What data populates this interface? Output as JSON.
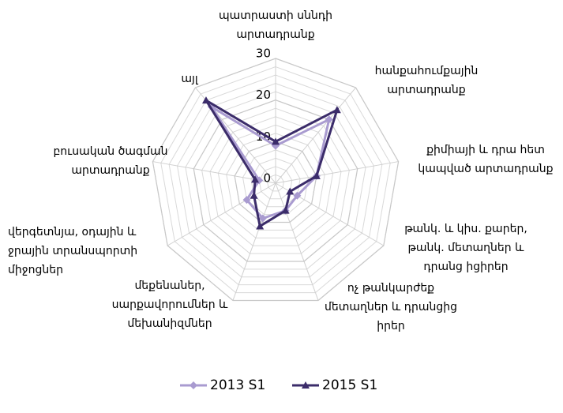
{
  "chart_data": {
    "type": "radar",
    "categories": [
      [
        "պատրաստի սննդի",
        "արտադրանք"
      ],
      [
        "հանքահումքային",
        "արտադրանք"
      ],
      [
        "քիմիայի և դրա հետ",
        "կապված արտադրանք"
      ],
      [
        "թանկ. և կիս. քարեր,",
        "թանկ. մետաղներ և",
        "դրանց իցիրեր"
      ],
      [
        "ոչ թանկարժեք",
        "մետաղներ և դրանցից",
        "իրեր"
      ],
      [
        "մեքենաներ,",
        "սարքավորումներ և",
        "մեխանիզմներ"
      ],
      [
        "վերգետնյա, օդային և",
        "ջրային տրանսպորտի",
        "միջոցներ"
      ],
      [
        "բուսական ծագման",
        "արտադրանք"
      ],
      [
        "այլ"
      ]
    ],
    "series": [
      {
        "name": "2013 S1",
        "color": "#a99bd0",
        "values": [
          9,
          20,
          10,
          6,
          7,
          9,
          8,
          4,
          24
        ]
      },
      {
        "name": "2015 S1",
        "color": "#3b2c6a",
        "values": [
          10,
          23,
          10,
          4,
          7,
          11,
          6,
          5,
          26
        ]
      }
    ],
    "ylim": [
      0,
      30
    ],
    "yticks": [
      0,
      10,
      20,
      30
    ],
    "grid": true,
    "legend": "bottom"
  }
}
